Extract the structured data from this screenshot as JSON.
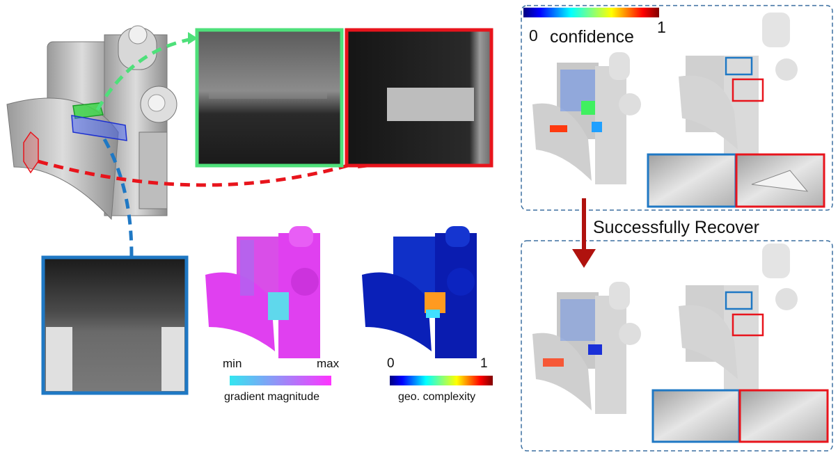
{
  "colors": {
    "green": "#4ee07a",
    "red": "#e8141c",
    "blue": "#1f78c4",
    "darkred": "#b0120e",
    "dashed_border": "#3b6fa0",
    "grad_min": "#33e6f0",
    "grad_max": "#ff33ff"
  },
  "gradient_legend": {
    "min": "min",
    "max": "max",
    "label": "gradient magnitude"
  },
  "complexity_legend": {
    "min": "0",
    "max": "1",
    "label": "geo. complexity"
  },
  "confidence_legend": {
    "min": "0",
    "max": "1",
    "label": "confidence"
  },
  "arrow_label": "Successfully Recover"
}
